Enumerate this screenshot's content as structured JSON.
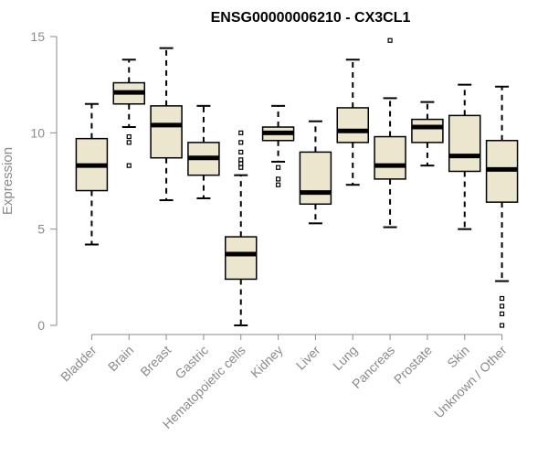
{
  "chart_data": {
    "type": "boxplot",
    "title": "ENSG00000006210 - CX3CL1",
    "xlabel": "",
    "ylabel": "Expression",
    "ylim": [
      0,
      15
    ],
    "yticks": [
      0,
      5,
      10,
      15
    ],
    "grid": false,
    "legend": "none",
    "colors": {
      "box_fill": "#ede6cf",
      "stroke": "#000000",
      "axis": "#8a8a8a",
      "title": "#000000"
    },
    "categories": [
      "Bladder",
      "Brain",
      "Breast",
      "Gastric",
      "Hematopoietic cells",
      "Kidney",
      "Liver",
      "Lung",
      "Pancreas",
      "Prostate",
      "Skin",
      "Unknown / Other"
    ],
    "boxes": [
      {
        "name": "Bladder",
        "whisker_low": 4.2,
        "q1": 7.0,
        "median": 8.3,
        "q3": 9.7,
        "whisker_high": 11.5,
        "outliers": []
      },
      {
        "name": "Brain",
        "whisker_low": 10.3,
        "q1": 11.5,
        "median": 12.1,
        "q3": 12.6,
        "whisker_high": 13.8,
        "outliers": [
          9.8,
          9.5,
          8.3
        ]
      },
      {
        "name": "Breast",
        "whisker_low": 6.5,
        "q1": 8.7,
        "median": 10.4,
        "q3": 11.4,
        "whisker_high": 14.4,
        "outliers": []
      },
      {
        "name": "Gastric",
        "whisker_low": 6.6,
        "q1": 7.8,
        "median": 8.7,
        "q3": 9.5,
        "whisker_high": 11.4,
        "outliers": []
      },
      {
        "name": "Hematopoietic cells",
        "whisker_low": 0.0,
        "q1": 2.4,
        "median": 3.7,
        "q3": 4.6,
        "whisker_high": 7.8,
        "outliers": [
          10.0,
          9.5,
          9.0,
          8.6,
          8.4,
          8.2
        ]
      },
      {
        "name": "Kidney",
        "whisker_low": 8.5,
        "q1": 9.6,
        "median": 10.0,
        "q3": 10.3,
        "whisker_high": 11.4,
        "outliers": [
          8.2,
          7.6,
          7.3
        ]
      },
      {
        "name": "Liver",
        "whisker_low": 5.3,
        "q1": 6.3,
        "median": 6.9,
        "q3": 9.0,
        "whisker_high": 10.6,
        "outliers": []
      },
      {
        "name": "Lung",
        "whisker_low": 7.3,
        "q1": 9.5,
        "median": 10.1,
        "q3": 11.3,
        "whisker_high": 13.8,
        "outliers": []
      },
      {
        "name": "Pancreas",
        "whisker_low": 5.1,
        "q1": 7.6,
        "median": 8.3,
        "q3": 9.8,
        "whisker_high": 11.8,
        "outliers": [
          14.8
        ]
      },
      {
        "name": "Prostate",
        "whisker_low": 8.3,
        "q1": 9.5,
        "median": 10.3,
        "q3": 10.7,
        "whisker_high": 11.6,
        "outliers": []
      },
      {
        "name": "Skin",
        "whisker_low": 5.0,
        "q1": 8.0,
        "median": 8.8,
        "q3": 10.9,
        "whisker_high": 12.5,
        "outliers": []
      },
      {
        "name": "Unknown / Other",
        "whisker_low": 2.3,
        "q1": 6.4,
        "median": 8.1,
        "q3": 9.6,
        "whisker_high": 12.4,
        "outliers": [
          1.4,
          1.0,
          0.6,
          0.0
        ]
      }
    ]
  }
}
